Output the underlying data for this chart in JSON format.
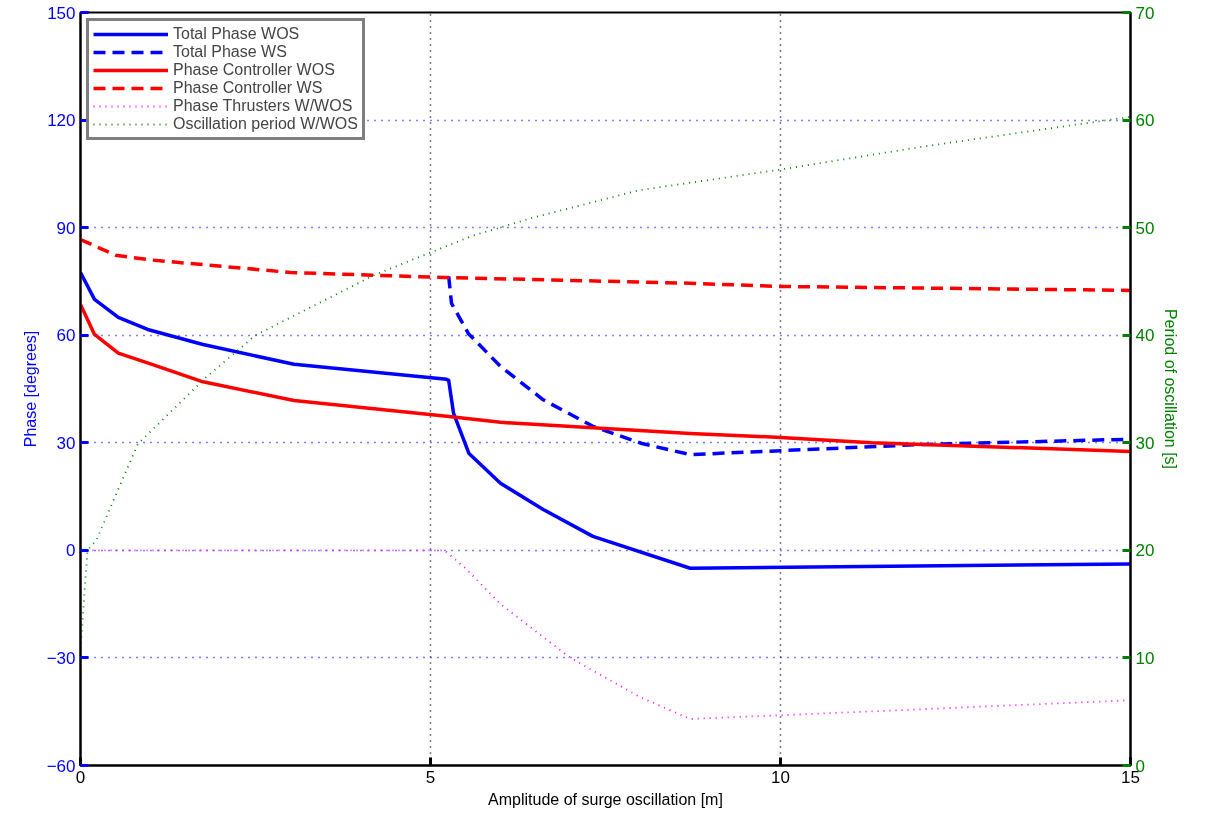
{
  "chart_data": {
    "type": "line",
    "xlabel": "Amplitude of surge oscillation [m]",
    "ylabel": "Phase [degrees]",
    "y2label": "Period of oscillation [s]",
    "xlim": [
      0,
      15
    ],
    "ylim": [
      -60,
      150
    ],
    "y2lim": [
      0,
      70
    ],
    "xticks": [
      0,
      5,
      10,
      15
    ],
    "yticks": [
      -60,
      -30,
      0,
      30,
      60,
      90,
      120,
      150
    ],
    "y2ticks": [
      0,
      10,
      20,
      30,
      40,
      50,
      60,
      70
    ],
    "grid": true,
    "legend": "top left",
    "series": [
      {
        "name": "Total Phase WOS",
        "color": "#0000ff",
        "line_style": "solid",
        "x": [
          0,
          0.2,
          0.54,
          0.96,
          1.75,
          3.05,
          5.23,
          5.26,
          5.33,
          5.55,
          6.0,
          6.61,
          7.32,
          8.71,
          15
        ],
        "values": [
          77.5,
          70,
          65,
          61.6,
          57.4,
          51.9,
          47.7,
          47.4,
          38.2,
          27,
          18.7,
          11.4,
          3.9,
          -5,
          -3.8
        ]
      },
      {
        "name": "Total Phase WS",
        "color": "#0000ff",
        "line_style": "dashed",
        "x": [
          5.26,
          5.3,
          5.54,
          6.0,
          6.61,
          7.32,
          8.02,
          8.71,
          12,
          15
        ],
        "values": [
          76.4,
          68.9,
          60.5,
          51.3,
          42,
          34.6,
          29.8,
          26.7,
          29.5,
          31
        ]
      },
      {
        "name": "Phase Controller WOS",
        "color": "#ff0000",
        "line_style": "solid",
        "x": [
          0,
          0.2,
          0.54,
          1.0,
          1.75,
          3.05,
          5.23,
          6.0,
          8.71,
          10,
          11.3,
          15
        ],
        "values": [
          68.6,
          60.2,
          55,
          52,
          47,
          41.8,
          37.4,
          35.7,
          32.6,
          31.5,
          30,
          27.6
        ]
      },
      {
        "name": "Phase Controller WS",
        "color": "#ff0000",
        "line_style": "dashed",
        "x": [
          0,
          0.5,
          1,
          3,
          5.2,
          8.7,
          10,
          15
        ],
        "values": [
          86.7,
          82.3,
          81,
          77.5,
          76.1,
          74.5,
          73.6,
          72.5
        ]
      },
      {
        "name": "Phase Thrusters W/WOS",
        "color": "#ff00ff",
        "line_style": "dotted",
        "x": [
          0,
          5.2,
          5.5,
          6,
          7,
          8,
          8.71,
          10,
          15
        ],
        "values": [
          0,
          0,
          -5,
          -15,
          -30,
          -41,
          -47,
          -46,
          -41.8
        ]
      },
      {
        "name": "Oscillation period W/WOS",
        "color": "#008000",
        "line_style": "dotted",
        "axis": "y2",
        "x": [
          0,
          0.1,
          0.23,
          0.82,
          1.78,
          2.5,
          4.2,
          5.58,
          6.5,
          8,
          10,
          12,
          15
        ],
        "values": [
          10.8,
          20,
          21,
          29.9,
          36,
          40,
          45.6,
          49.2,
          51,
          53.5,
          55.4,
          57.5,
          60.3
        ]
      }
    ]
  }
}
